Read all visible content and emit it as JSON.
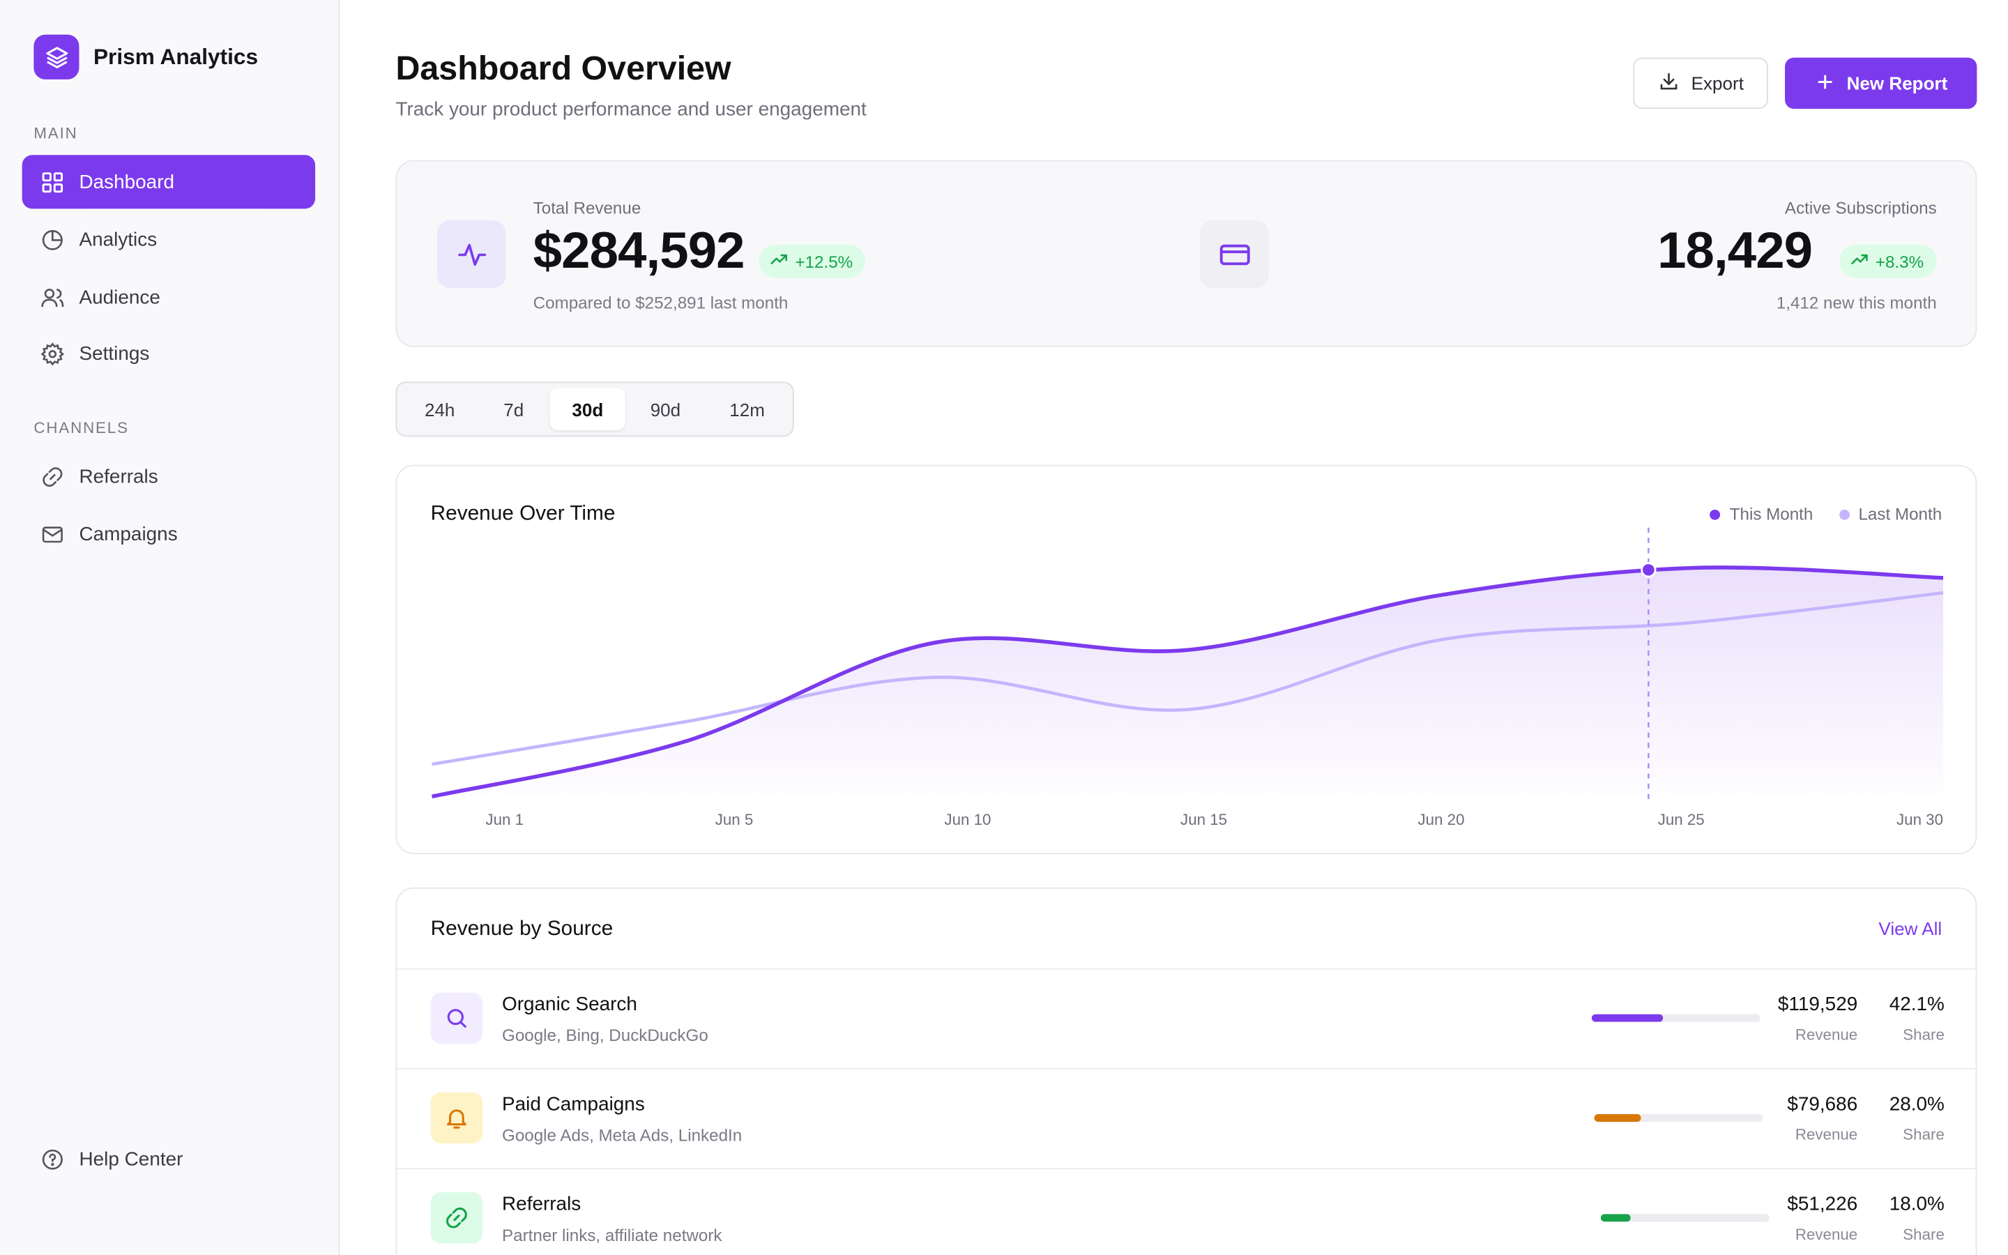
{
  "app": {
    "name": "Prism Analytics",
    "logo_icon": "layers-icon",
    "accent": "#7c3aed"
  },
  "sidebar": {
    "main_label": "MAIN",
    "main_items": [
      {
        "label": "Dashboard",
        "icon": "grid-icon",
        "active": true
      },
      {
        "label": "Analytics",
        "icon": "pie-chart-icon",
        "active": false
      },
      {
        "label": "Audience",
        "icon": "users-icon",
        "active": false
      },
      {
        "label": "Settings",
        "icon": "gear-icon",
        "active": false
      }
    ],
    "channels_label": "CHANNELS",
    "channel_items": [
      {
        "label": "Referrals",
        "icon": "link-icon"
      },
      {
        "label": "Campaigns",
        "icon": "mail-icon"
      }
    ],
    "help": {
      "label": "Help Center",
      "icon": "help-circle-icon"
    }
  },
  "header": {
    "title": "Dashboard Overview",
    "subtitle": "Track your product performance and user engagement",
    "export_label": "Export",
    "new_report_label": "New Report"
  },
  "stats": {
    "revenue": {
      "label": "Total Revenue",
      "value": "$284,592",
      "change": "+12.5%",
      "footnote": "Compared to $252,891 last month",
      "icon": "activity-icon"
    },
    "middle_icon": "credit-card-icon",
    "subscriptions": {
      "label": "Active Subscriptions",
      "value": "18,429",
      "change": "+8.3%",
      "footnote": "1,412 new this month"
    },
    "positive_color": "#16a34a"
  },
  "time_ranges": {
    "options": [
      "24h",
      "7d",
      "30d",
      "90d",
      "12m"
    ],
    "selected": "30d"
  },
  "revenue_chart": {
    "title": "Revenue Over Time",
    "chart_data": {
      "type": "area",
      "title": "Revenue Over Time",
      "x": [
        "Jun 1",
        "Jun 5",
        "Jun 10",
        "Jun 15",
        "Jun 20",
        "Jun 25",
        "Jun 30"
      ],
      "series": [
        {
          "name": "This Month",
          "color": "#7c3aed",
          "values": [
            0,
            22,
            62,
            59,
            81,
            92,
            88
          ]
        },
        {
          "name": "Last Month",
          "color": "#c4b5fd",
          "values": [
            13,
            30,
            48,
            35,
            63,
            70,
            82
          ]
        }
      ],
      "highlight_x": "Jun 25",
      "ylim": [
        0,
        100
      ],
      "legend": "top-right",
      "grid": false
    }
  },
  "sources": {
    "title": "Revenue by Source",
    "view_all": "View All",
    "revenue_label": "Revenue",
    "share_label": "Share",
    "rows": [
      {
        "name": "Organic Search",
        "desc": "Google, Bing, DuckDuckGo",
        "revenue": "$119,529",
        "share": "42.1%",
        "share_value": 0.421,
        "icon": "search-icon",
        "color": "#7c3aed",
        "icon_bg": "#f1ecfe"
      },
      {
        "name": "Paid Campaigns",
        "desc": "Google Ads, Meta Ads, LinkedIn",
        "revenue": "$79,686",
        "share": "28.0%",
        "share_value": 0.28,
        "icon": "bell-icon",
        "color": "#d97706",
        "icon_bg": "#fef3c7"
      },
      {
        "name": "Referrals",
        "desc": "Partner links, affiliate network",
        "revenue": "$51,226",
        "share": "18.0%",
        "share_value": 0.18,
        "icon": "link-icon",
        "color": "#16a34a",
        "icon_bg": "#dcfce7"
      }
    ]
  }
}
